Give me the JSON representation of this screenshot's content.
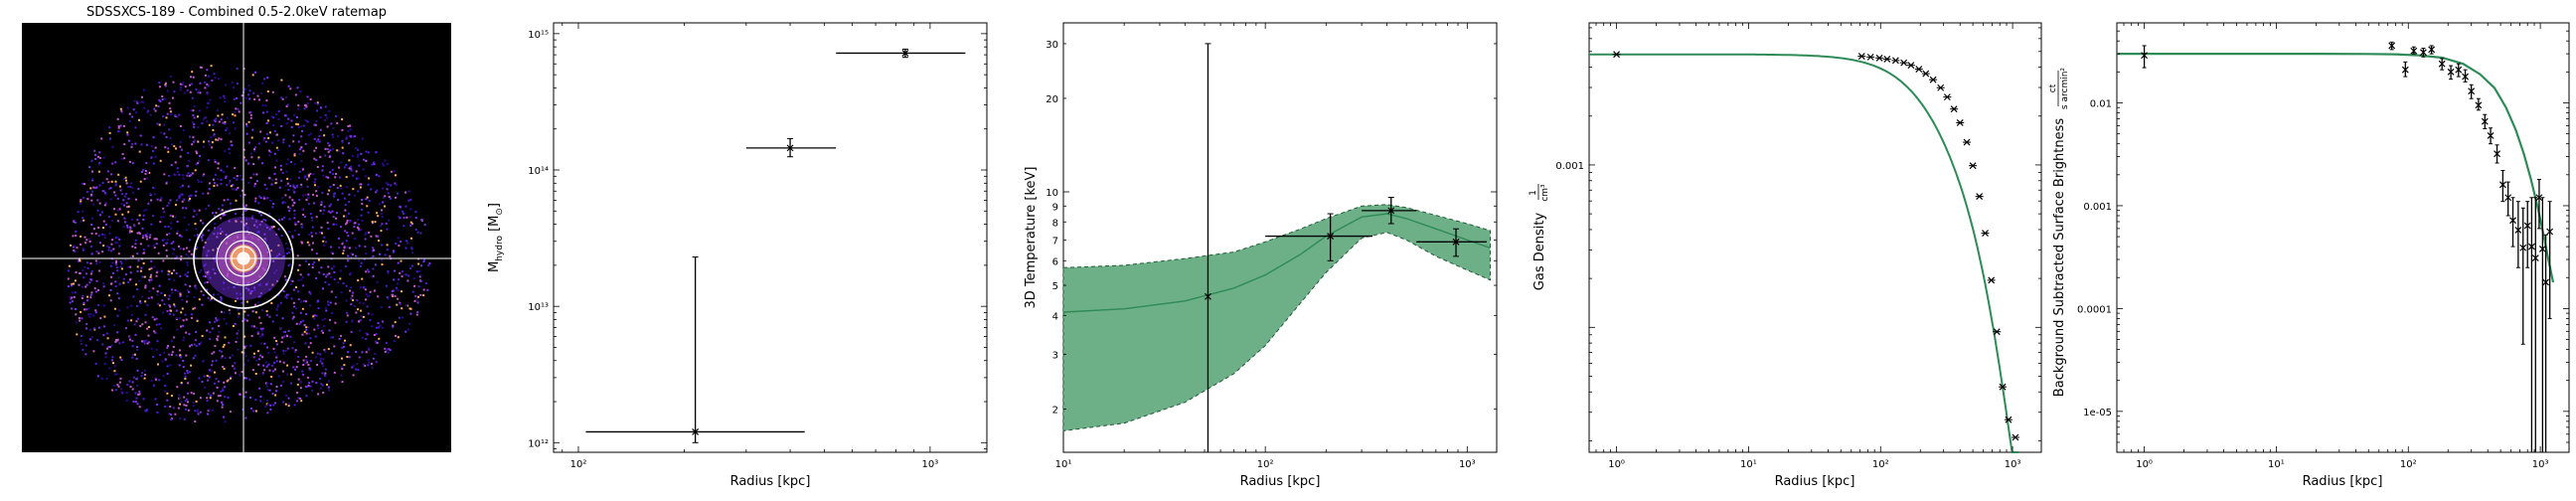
{
  "figure": {
    "panel_title": "SDSSXCS-189 - Combined 0.5-2.0keV ratemap"
  },
  "colors": {
    "background": "#ffffff",
    "image_background": "#000000",
    "band_fill": "#6daf86",
    "band_edge": "#1f5a38",
    "model_line": "#2e8b57",
    "data": "#000000",
    "crosshair": "#ffffff",
    "ratemap_pixels": [
      "#2a0a8a",
      "#4a1fd0",
      "#7a33e8",
      "#c05ac8",
      "#ffb060",
      "#ffffff"
    ]
  },
  "chart_data": [
    {
      "type": "image",
      "title": "SDSSXCS-189 - Combined 0.5-2.0keV ratemap",
      "colormap": "magma-like (black to purple to orange to white)",
      "overlay": [
        "white crosshair through cluster centre",
        "concentric white annuli around centre"
      ]
    },
    {
      "type": "scatter",
      "xlabel": "Radius [kpc]",
      "ylabel": "M_hydro [M_⊙]",
      "ylabel_main": "M",
      "ylabel_sub": "hydro",
      "ylabel_unit_open": " [M",
      "ylabel_unit_sub": "⊙",
      "ylabel_unit_close": "]",
      "xscale": "log",
      "yscale": "log",
      "xlim": [
        85,
        1450
      ],
      "ylim": [
        850000000000.0,
        1200000000000000.0
      ],
      "xticks": [
        {
          "v": 100,
          "l": "10²"
        },
        {
          "v": 1000,
          "l": "10³"
        }
      ],
      "yticks": [
        {
          "v": 1000000000000.0,
          "l": "10¹²"
        },
        {
          "v": 10000000000000.0,
          "l": "10¹³"
        },
        {
          "v": 100000000000000.0,
          "l": "10¹⁴"
        },
        {
          "v": 1000000000000000.0,
          "l": "10¹⁵"
        }
      ],
      "points": [
        {
          "x": 215,
          "x_lo": 105,
          "x_hi": 440,
          "y": 1200000000000.0,
          "y_lo": 1000000000000.0,
          "y_hi": 23000000000000.0
        },
        {
          "x": 400,
          "x_lo": 300,
          "x_hi": 540,
          "y": 145000000000000.0,
          "y_lo": 125000000000000.0,
          "y_hi": 170000000000000.0
        },
        {
          "x": 850,
          "x_lo": 540,
          "x_hi": 1260,
          "y": 720000000000000.0,
          "y_lo": 670000000000000.0,
          "y_hi": 770000000000000.0
        }
      ]
    },
    {
      "type": "area",
      "xlabel": "Radius [kpc]",
      "ylabel": "3D Temperature [keV]",
      "xscale": "log",
      "yscale": "log",
      "xlim": [
        10,
        1400
      ],
      "ylim": [
        1.45,
        35
      ],
      "xticks": [
        {
          "v": 10,
          "l": "10¹"
        },
        {
          "v": 100,
          "l": "10²"
        },
        {
          "v": 1000,
          "l": "10³"
        }
      ],
      "yticks": [
        {
          "v": 2,
          "l": "2"
        },
        {
          "v": 3,
          "l": "3"
        },
        {
          "v": 4,
          "l": "4"
        },
        {
          "v": 5,
          "l": "5"
        },
        {
          "v": 6,
          "l": "6"
        },
        {
          "v": 7,
          "l": "7"
        },
        {
          "v": 8,
          "l": "8"
        },
        {
          "v": 9,
          "l": "9"
        },
        {
          "v": 10,
          "l": "10"
        },
        {
          "v": 20,
          "l": "20"
        },
        {
          "v": 30,
          "l": "30"
        }
      ],
      "model": {
        "x": [
          10,
          20,
          40,
          70,
          100,
          150,
          200,
          300,
          400,
          500,
          700,
          1000,
          1300
        ],
        "median": [
          4.1,
          4.2,
          4.45,
          4.9,
          5.4,
          6.3,
          7.2,
          8.3,
          8.5,
          8.2,
          7.6,
          7.0,
          6.6
        ],
        "lower": [
          1.7,
          1.8,
          2.1,
          2.6,
          3.2,
          4.4,
          5.5,
          7.1,
          7.4,
          7.0,
          6.2,
          5.6,
          5.2
        ],
        "upper": [
          5.7,
          5.8,
          6.1,
          6.4,
          6.9,
          7.6,
          8.2,
          9.0,
          9.1,
          8.9,
          8.4,
          7.9,
          7.5
        ]
      },
      "points": [
        {
          "x": 52,
          "x_lo": 52,
          "x_hi": 52,
          "y": 4.6,
          "y_lo": 1.45,
          "y_hi": 30
        },
        {
          "x": 210,
          "x_lo": 100,
          "x_hi": 340,
          "y": 7.2,
          "y_lo": 6.0,
          "y_hi": 8.5
        },
        {
          "x": 420,
          "x_lo": 300,
          "x_hi": 560,
          "y": 8.7,
          "y_lo": 7.9,
          "y_hi": 9.6
        },
        {
          "x": 880,
          "x_lo": 560,
          "x_hi": 1250,
          "y": 6.9,
          "y_lo": 6.2,
          "y_hi": 7.6
        }
      ]
    },
    {
      "type": "line",
      "xlabel": "Radius [kpc]",
      "ylabel": "Gas Density",
      "ylabel_unit_num": "1",
      "ylabel_unit_den": "cm³",
      "xscale": "log",
      "yscale": "log",
      "xlim": [
        0.62,
        1650
      ],
      "ylim": [
        1.7e-05,
        0.0075
      ],
      "xticks": [
        {
          "v": 1,
          "l": "10⁰"
        },
        {
          "v": 10,
          "l": "10¹"
        },
        {
          "v": 100,
          "l": "10²"
        },
        {
          "v": 1000,
          "l": "10³"
        }
      ],
      "yticks": [
        {
          "v": 0.001,
          "l": "0.001"
        }
      ],
      "model": {
        "r_core": 250,
        "n0": 0.0048,
        "beta": 0.9,
        "r_break": 650,
        "steep_exp": 4
      },
      "points": [
        {
          "x": 1.0,
          "y": 0.0048
        },
        {
          "x": 72,
          "y": 0.00467
        },
        {
          "x": 84,
          "y": 0.00462
        },
        {
          "x": 98,
          "y": 0.00456
        },
        {
          "x": 112,
          "y": 0.00449
        },
        {
          "x": 130,
          "y": 0.0044
        },
        {
          "x": 150,
          "y": 0.00426
        },
        {
          "x": 170,
          "y": 0.00411
        },
        {
          "x": 195,
          "y": 0.00389
        },
        {
          "x": 220,
          "y": 0.00365
        },
        {
          "x": 250,
          "y": 0.00335
        },
        {
          "x": 285,
          "y": 0.00299
        },
        {
          "x": 320,
          "y": 0.00262
        },
        {
          "x": 360,
          "y": 0.00221
        },
        {
          "x": 400,
          "y": 0.00182
        },
        {
          "x": 450,
          "y": 0.00138
        },
        {
          "x": 500,
          "y": 0.00099
        },
        {
          "x": 560,
          "y": 0.00064
        },
        {
          "x": 620,
          "y": 0.00038
        },
        {
          "x": 690,
          "y": 0.000195
        },
        {
          "x": 760,
          "y": 9.4e-05
        },
        {
          "x": 840,
          "y": 4.3e-05
        },
        {
          "x": 930,
          "y": 2.7e-05
        },
        {
          "x": 1050,
          "y": 2.1e-05
        }
      ]
    },
    {
      "type": "scatter",
      "xlabel": "Radius [kpc]",
      "ylabel": "Background Subtracted Surface Brightness",
      "ylabel_unit_num": "ct",
      "ylabel_unit_den": "s arcmin²",
      "xscale": "log",
      "yscale": "log",
      "xlim": [
        0.62,
        1650
      ],
      "ylim": [
        4e-06,
        0.06
      ],
      "xticks": [
        {
          "v": 1,
          "l": "10⁰"
        },
        {
          "v": 10,
          "l": "10¹"
        },
        {
          "v": 100,
          "l": "10²"
        },
        {
          "v": 1000,
          "l": "10³"
        }
      ],
      "yticks": [
        {
          "v": 1e-05,
          "l": "1e-05"
        },
        {
          "v": 0.0001,
          "l": "0.0001"
        },
        {
          "v": 0.001,
          "l": "0.001"
        },
        {
          "v": 0.01,
          "l": "0.01"
        }
      ],
      "model": {
        "x": [
          0.62,
          1,
          5,
          20,
          50,
          80,
          120,
          180,
          260,
          350,
          450,
          550,
          650,
          750,
          850,
          950,
          1050,
          1150,
          1250
        ],
        "y": [
          0.03,
          0.03,
          0.03,
          0.03,
          0.0299,
          0.0297,
          0.029,
          0.0275,
          0.024,
          0.019,
          0.014,
          0.009,
          0.0055,
          0.0032,
          0.0018,
          0.001,
          0.00055,
          0.0003,
          0.00018
        ]
      },
      "points": [
        {
          "x": 1.0,
          "y": 0.029,
          "y_lo": 0.022,
          "y_hi": 0.036
        },
        {
          "x": 75,
          "y": 0.036,
          "y_lo": 0.033,
          "y_hi": 0.039
        },
        {
          "x": 95,
          "y": 0.021,
          "y_lo": 0.018,
          "y_hi": 0.025
        },
        {
          "x": 110,
          "y": 0.032,
          "y_lo": 0.03,
          "y_hi": 0.035
        },
        {
          "x": 130,
          "y": 0.031,
          "y_lo": 0.028,
          "y_hi": 0.034
        },
        {
          "x": 150,
          "y": 0.033,
          "y_lo": 0.03,
          "y_hi": 0.036
        },
        {
          "x": 180,
          "y": 0.024,
          "y_lo": 0.021,
          "y_hi": 0.027
        },
        {
          "x": 210,
          "y": 0.02,
          "y_lo": 0.017,
          "y_hi": 0.023
        },
        {
          "x": 240,
          "y": 0.021,
          "y_lo": 0.018,
          "y_hi": 0.024
        },
        {
          "x": 270,
          "y": 0.018,
          "y_lo": 0.016,
          "y_hi": 0.021
        },
        {
          "x": 300,
          "y": 0.013,
          "y_lo": 0.011,
          "y_hi": 0.015
        },
        {
          "x": 340,
          "y": 0.0095,
          "y_lo": 0.0085,
          "y_hi": 0.011
        },
        {
          "x": 380,
          "y": 0.0066,
          "y_lo": 0.0056,
          "y_hi": 0.0077
        },
        {
          "x": 420,
          "y": 0.0048,
          "y_lo": 0.004,
          "y_hi": 0.0057
        },
        {
          "x": 470,
          "y": 0.0032,
          "y_lo": 0.0026,
          "y_hi": 0.0039
        },
        {
          "x": 520,
          "y": 0.0016,
          "y_lo": 0.0011,
          "y_hi": 0.0022
        },
        {
          "x": 570,
          "y": 0.0012,
          "y_lo": 0.0008,
          "y_hi": 0.0017
        },
        {
          "x": 620,
          "y": 0.00072,
          "y_lo": 0.0004,
          "y_hi": 0.0012
        },
        {
          "x": 680,
          "y": 0.00058,
          "y_lo": 0.00025,
          "y_hi": 0.0011
        },
        {
          "x": 740,
          "y": 0.00039,
          "y_lo": 4.5e-05,
          "y_hi": 0.00095
        },
        {
          "x": 800,
          "y": 0.00064,
          "y_lo": 0.00025,
          "y_hi": 0.0011
        },
        {
          "x": 860,
          "y": 0.0004,
          "y_lo": 4e-06,
          "y_hi": 0.0012
        },
        {
          "x": 920,
          "y": 0.00031,
          "y_lo": 4e-06,
          "y_hi": 0.0012
        },
        {
          "x": 980,
          "y": 0.0012,
          "y_lo": 0.0006,
          "y_hi": 0.0018
        },
        {
          "x": 1040,
          "y": 0.00038,
          "y_lo": 4e-06,
          "y_hi": 0.0012
        },
        {
          "x": 1100,
          "y": 0.00018,
          "y_lo": 4e-06,
          "y_hi": 0.00052
        },
        {
          "x": 1180,
          "y": 0.00056,
          "y_lo": 8e-05,
          "y_hi": 0.0011
        }
      ]
    }
  ]
}
